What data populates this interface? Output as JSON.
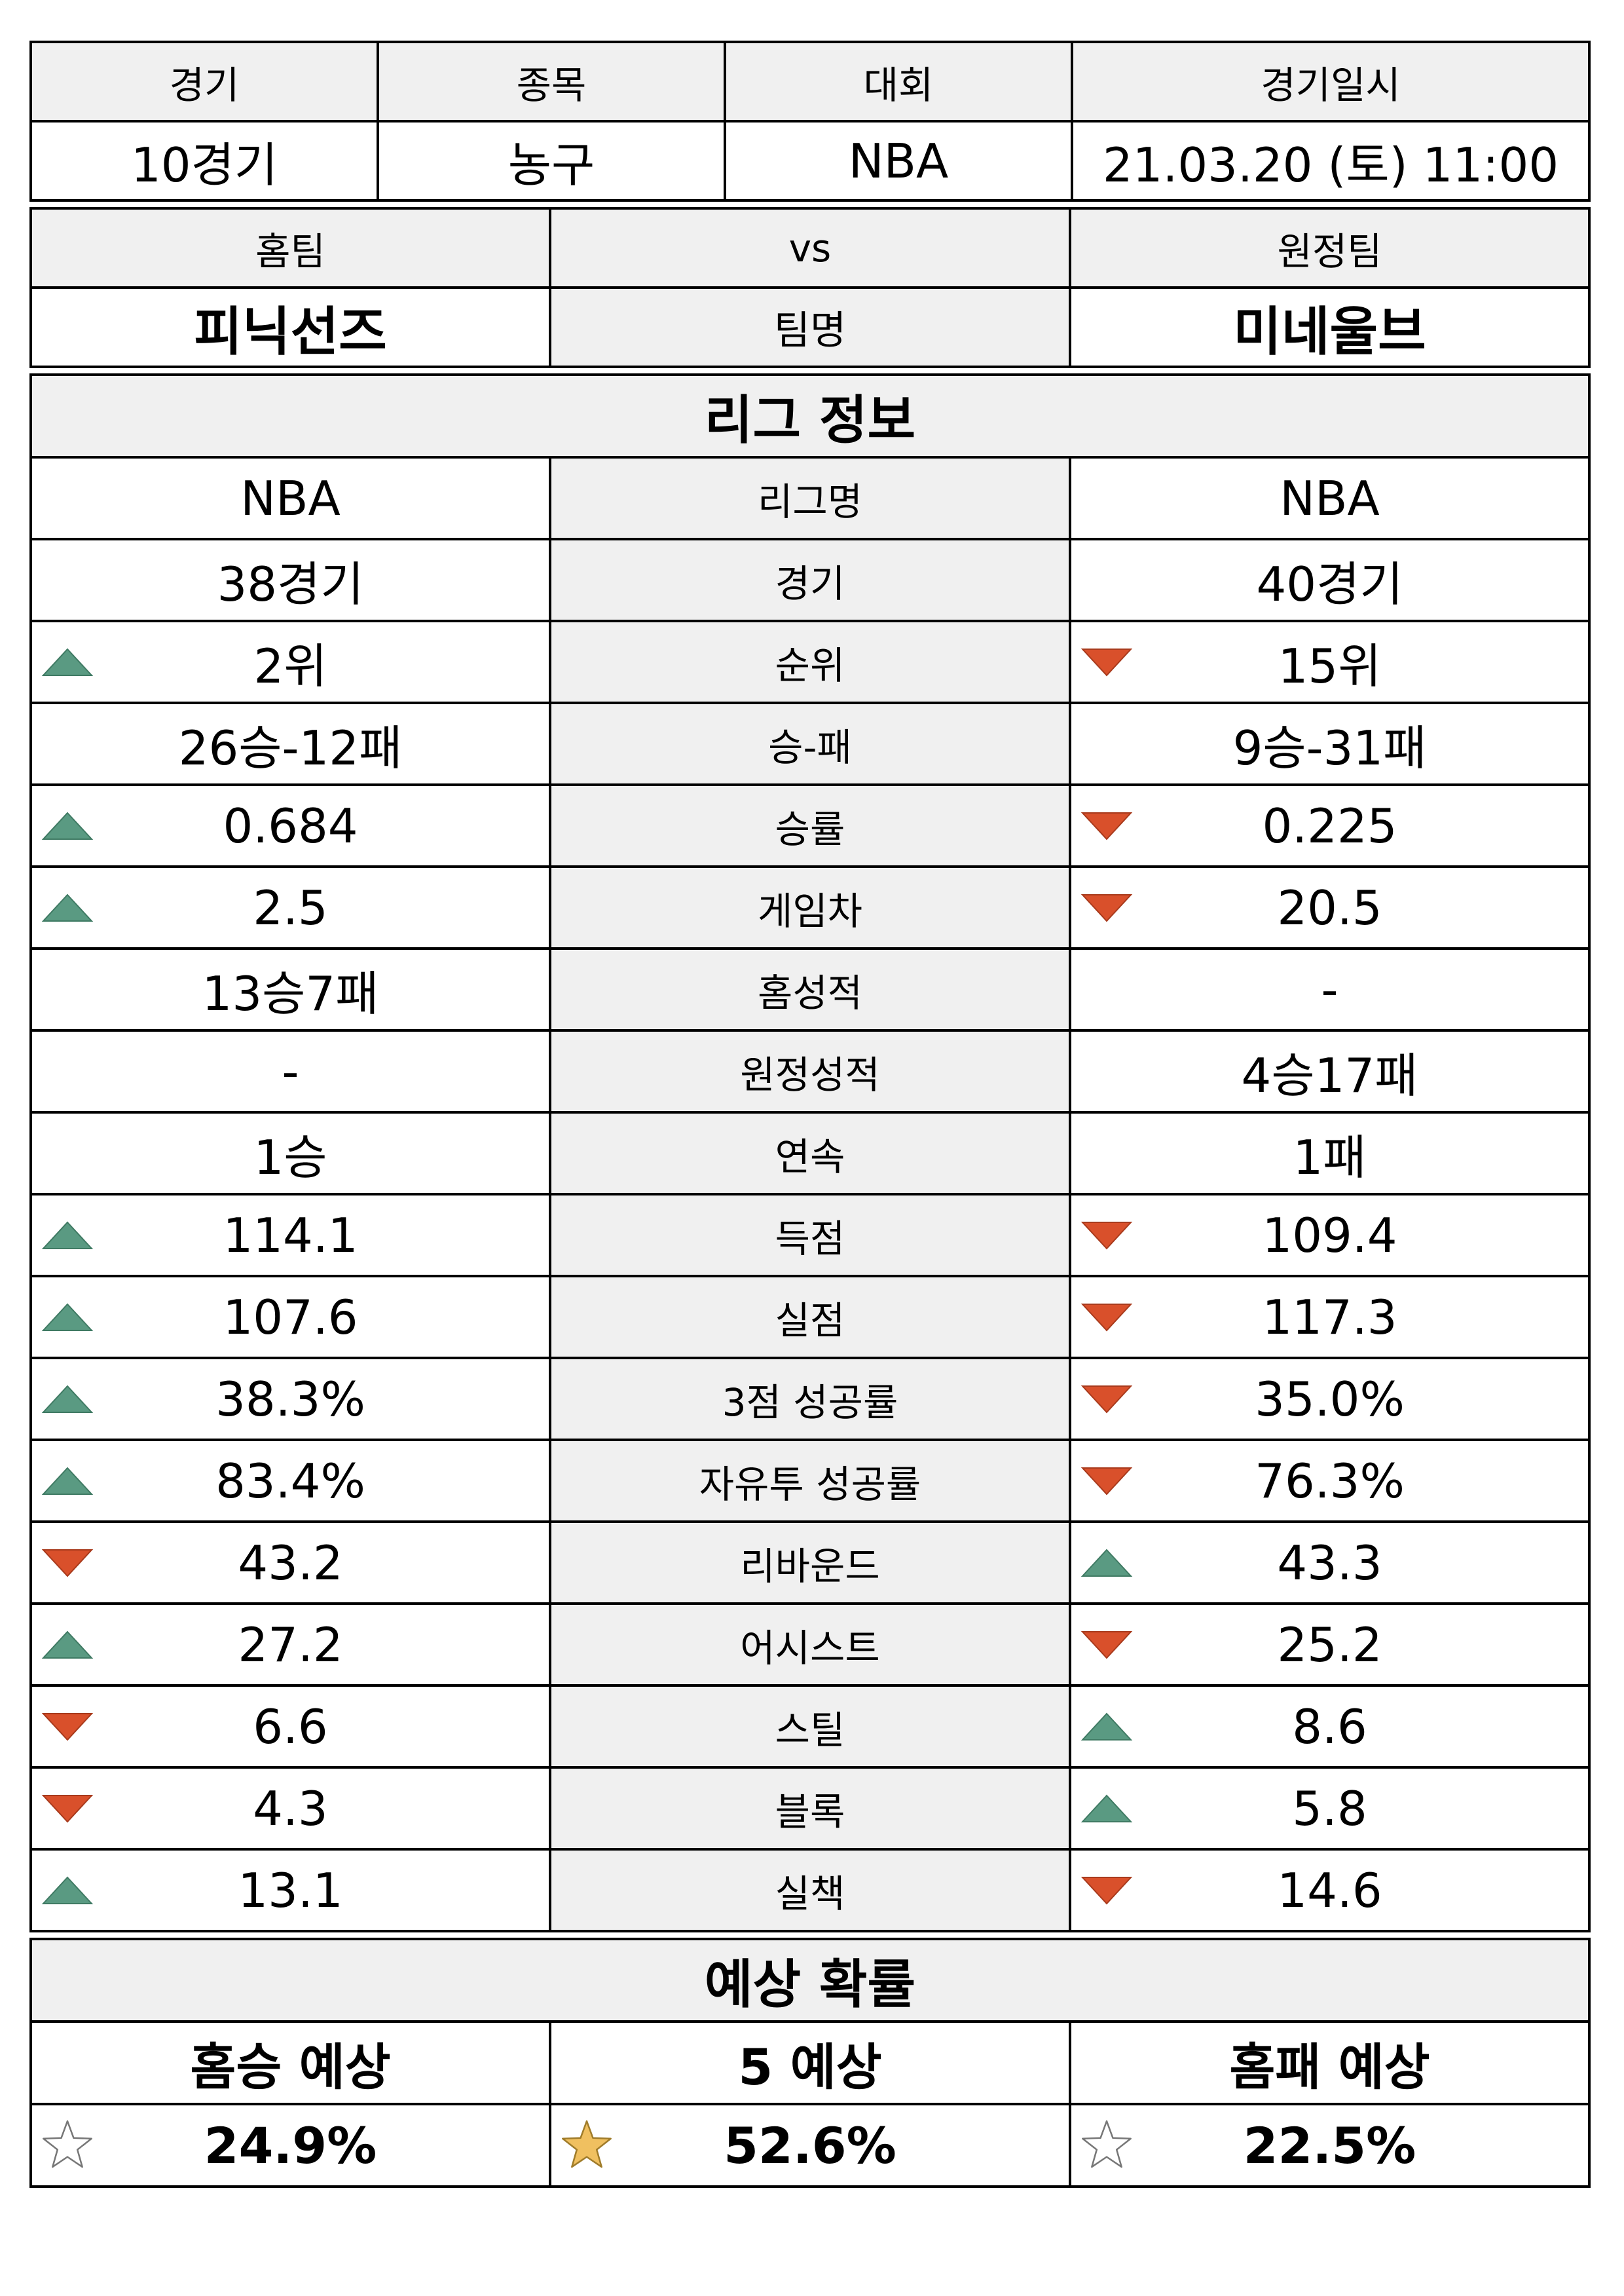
{
  "match_header": {
    "labels": [
      "경기",
      "종목",
      "대회",
      "경기일시"
    ],
    "values": [
      "10경기",
      "농구",
      "NBA",
      "21.03.20 (토) 11:00"
    ]
  },
  "teams": {
    "home_label": "홈팀",
    "vs_label": "vs",
    "away_label": "원정팀",
    "home_name": "피닉선즈",
    "name_label": "팀명",
    "away_name": "미네울브"
  },
  "league_section_title": "리그 정보",
  "stats": [
    {
      "label": "리그명",
      "home": "NBA",
      "away": "NBA",
      "home_trend": "none",
      "away_trend": "none"
    },
    {
      "label": "경기",
      "home": "38경기",
      "away": "40경기",
      "home_trend": "none",
      "away_trend": "none"
    },
    {
      "label": "순위",
      "home": "2위",
      "away": "15위",
      "home_trend": "up",
      "away_trend": "down"
    },
    {
      "label": "승-패",
      "home": "26승-12패",
      "away": "9승-31패",
      "home_trend": "none",
      "away_trend": "none"
    },
    {
      "label": "승률",
      "home": "0.684",
      "away": "0.225",
      "home_trend": "up",
      "away_trend": "down"
    },
    {
      "label": "게임차",
      "home": "2.5",
      "away": "20.5",
      "home_trend": "up",
      "away_trend": "down"
    },
    {
      "label": "홈성적",
      "home": "13승7패",
      "away": "-",
      "home_trend": "none",
      "away_trend": "none"
    },
    {
      "label": "원정성적",
      "home": "-",
      "away": "4승17패",
      "home_trend": "none",
      "away_trend": "none"
    },
    {
      "label": "연속",
      "home": "1승",
      "away": "1패",
      "home_trend": "none",
      "away_trend": "none"
    },
    {
      "label": "득점",
      "home": "114.1",
      "away": "109.4",
      "home_trend": "up",
      "away_trend": "down"
    },
    {
      "label": "실점",
      "home": "107.6",
      "away": "117.3",
      "home_trend": "up",
      "away_trend": "down"
    },
    {
      "label": "3점 성공률",
      "home": "38.3%",
      "away": "35.0%",
      "home_trend": "up",
      "away_trend": "down"
    },
    {
      "label": "자유투 성공률",
      "home": "83.4%",
      "away": "76.3%",
      "home_trend": "up",
      "away_trend": "down"
    },
    {
      "label": "리바운드",
      "home": "43.2",
      "away": "43.3",
      "home_trend": "down",
      "away_trend": "up"
    },
    {
      "label": "어시스트",
      "home": "27.2",
      "away": "25.2",
      "home_trend": "up",
      "away_trend": "down"
    },
    {
      "label": "스틸",
      "home": "6.6",
      "away": "8.6",
      "home_trend": "down",
      "away_trend": "up"
    },
    {
      "label": "블록",
      "home": "4.3",
      "away": "5.8",
      "home_trend": "down",
      "away_trend": "up"
    },
    {
      "label": "실책",
      "home": "13.1",
      "away": "14.6",
      "home_trend": "up",
      "away_trend": "down"
    }
  ],
  "prediction": {
    "title": "예상 확률",
    "labels": [
      "홈승 예상",
      "5 예상",
      "홈패 예상"
    ],
    "values": [
      "24.9%",
      "52.6%",
      "22.5%"
    ],
    "highlighted": [
      false,
      true,
      false
    ]
  },
  "colors": {
    "up": "#5a9a82",
    "down": "#d9502b",
    "star_filled": "#f0c060",
    "header_bg": "#f0f0f0"
  },
  "icons": {
    "up": "triangle-up-icon",
    "down": "triangle-down-icon",
    "star": "star-icon"
  }
}
